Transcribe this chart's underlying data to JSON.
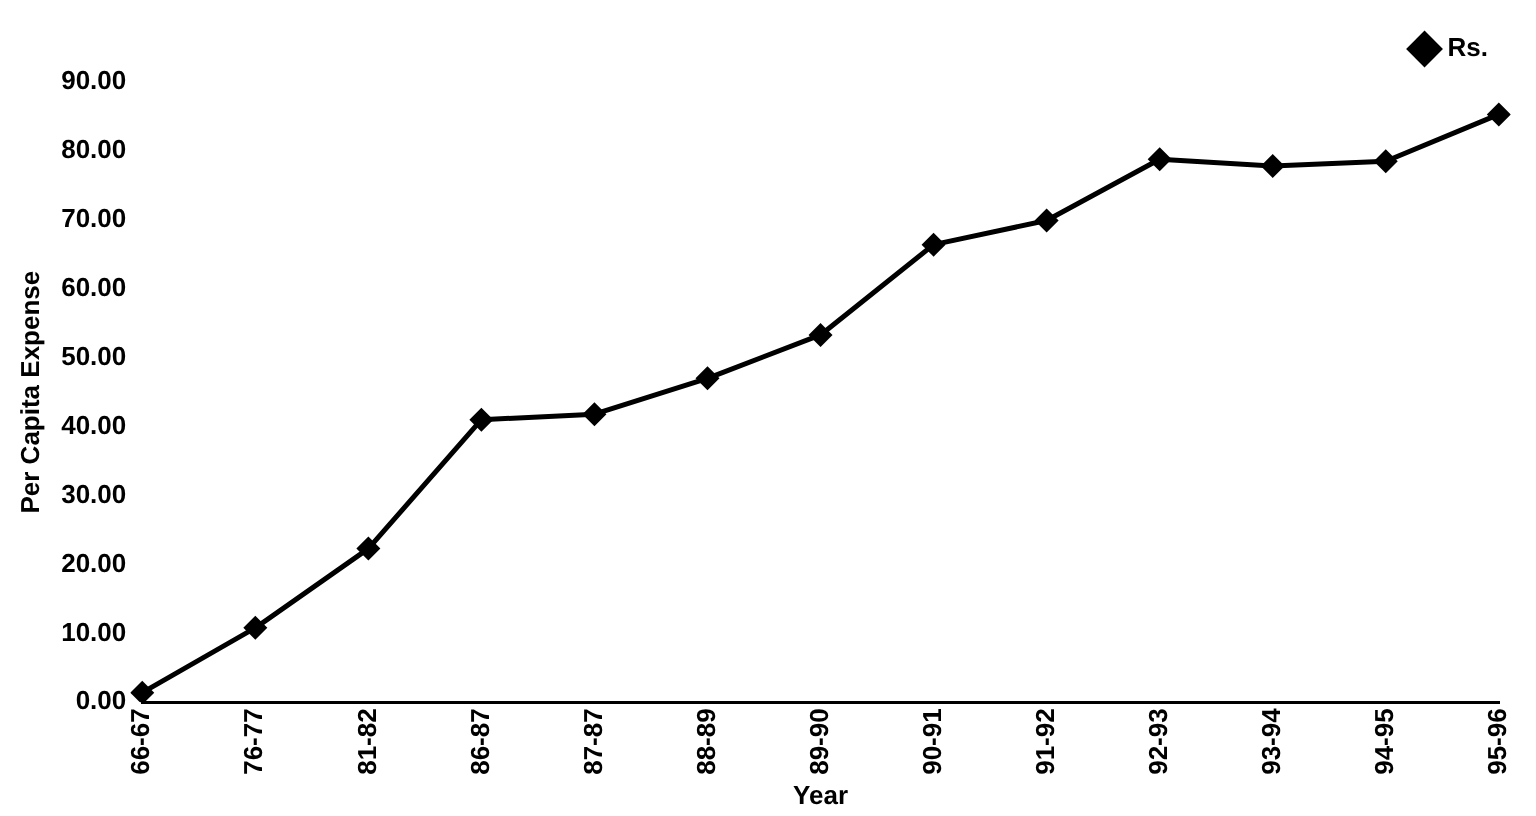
{
  "chart_data": {
    "type": "line",
    "xlabel": "Year",
    "ylabel": "Per Capita Expense",
    "categories": [
      "66-67",
      "76-77",
      "81-82",
      "86-87",
      "87-87",
      "88-89",
      "89-90",
      "90-91",
      "91-92",
      "92-93",
      "93-94",
      "94-95",
      "95-96"
    ],
    "series": [
      {
        "name": "Rs.",
        "color": "#000000",
        "values": [
          1.4,
          10.8,
          22.3,
          41.0,
          41.8,
          47.0,
          53.3,
          66.4,
          69.9,
          78.8,
          77.8,
          78.5,
          85.3
        ]
      }
    ],
    "ylim": [
      0,
      90
    ],
    "yticks": [
      {
        "value": 0,
        "label": "0.00"
      },
      {
        "value": 10,
        "label": "10.00"
      },
      {
        "value": 20,
        "label": "20.00"
      },
      {
        "value": 30,
        "label": "30.00"
      },
      {
        "value": 40,
        "label": "40.00"
      },
      {
        "value": 50,
        "label": "50.00"
      },
      {
        "value": 60,
        "label": "60.00"
      },
      {
        "value": 70,
        "label": "70.00"
      },
      {
        "value": 80,
        "label": "80.00"
      },
      {
        "value": 90,
        "label": "90.00"
      }
    ],
    "grid": false,
    "legend": "top right",
    "marker": "diamond",
    "line_style": "solid"
  }
}
